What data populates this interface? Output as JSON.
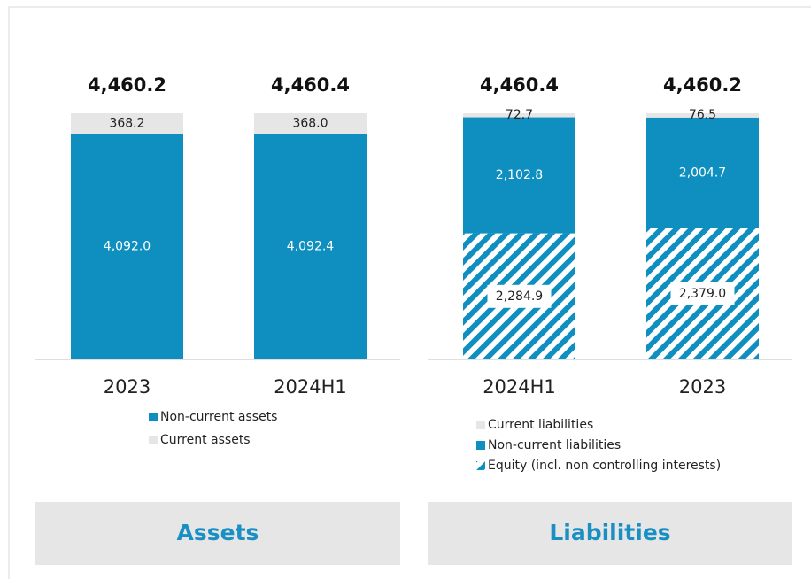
{
  "chart_data": [
    {
      "type": "stacked_bar",
      "title": "Assets",
      "categories": [
        "2023",
        "2024H1"
      ],
      "totals": [
        4460.2,
        4460.4
      ],
      "total_labels": [
        "4,460.2",
        "4,460.4"
      ],
      "series": [
        {
          "name": "Non-current assets",
          "color": "#0e8fc0",
          "values": [
            4092.0,
            4092.4
          ],
          "value_labels": [
            "4,092.0",
            "4,092.4"
          ]
        },
        {
          "name": "Current assets",
          "color": "#e6e6e6",
          "values": [
            368.2,
            368.0
          ],
          "value_labels": [
            "368.2",
            "368.0"
          ]
        }
      ]
    },
    {
      "type": "stacked_bar",
      "title": "Liabilities",
      "categories": [
        "2024H1",
        "2023"
      ],
      "totals": [
        4460.4,
        4460.2
      ],
      "total_labels": [
        "4,460.4",
        "4,460.2"
      ],
      "stack_order": "reverse",
      "series": [
        {
          "name": "Current liabilities",
          "color": "#e6e6e6",
          "values": [
            72.7,
            76.5
          ]
        },
        {
          "name": "Non-current liabilities",
          "color": "#0e8fc0",
          "values": [
            2102.8,
            2004.7
          ],
          "value_labels": [
            "2,102.8",
            "2,004.7"
          ]
        },
        {
          "name": "Equity (incl. non controlling interests)",
          "color": "#0e8fc0",
          "hatch": true,
          "values": [
            2284.9,
            2379.0
          ],
          "value_labels": [
            "2,284.9",
            "2,379.0"
          ]
        }
      ]
    }
  ]
}
